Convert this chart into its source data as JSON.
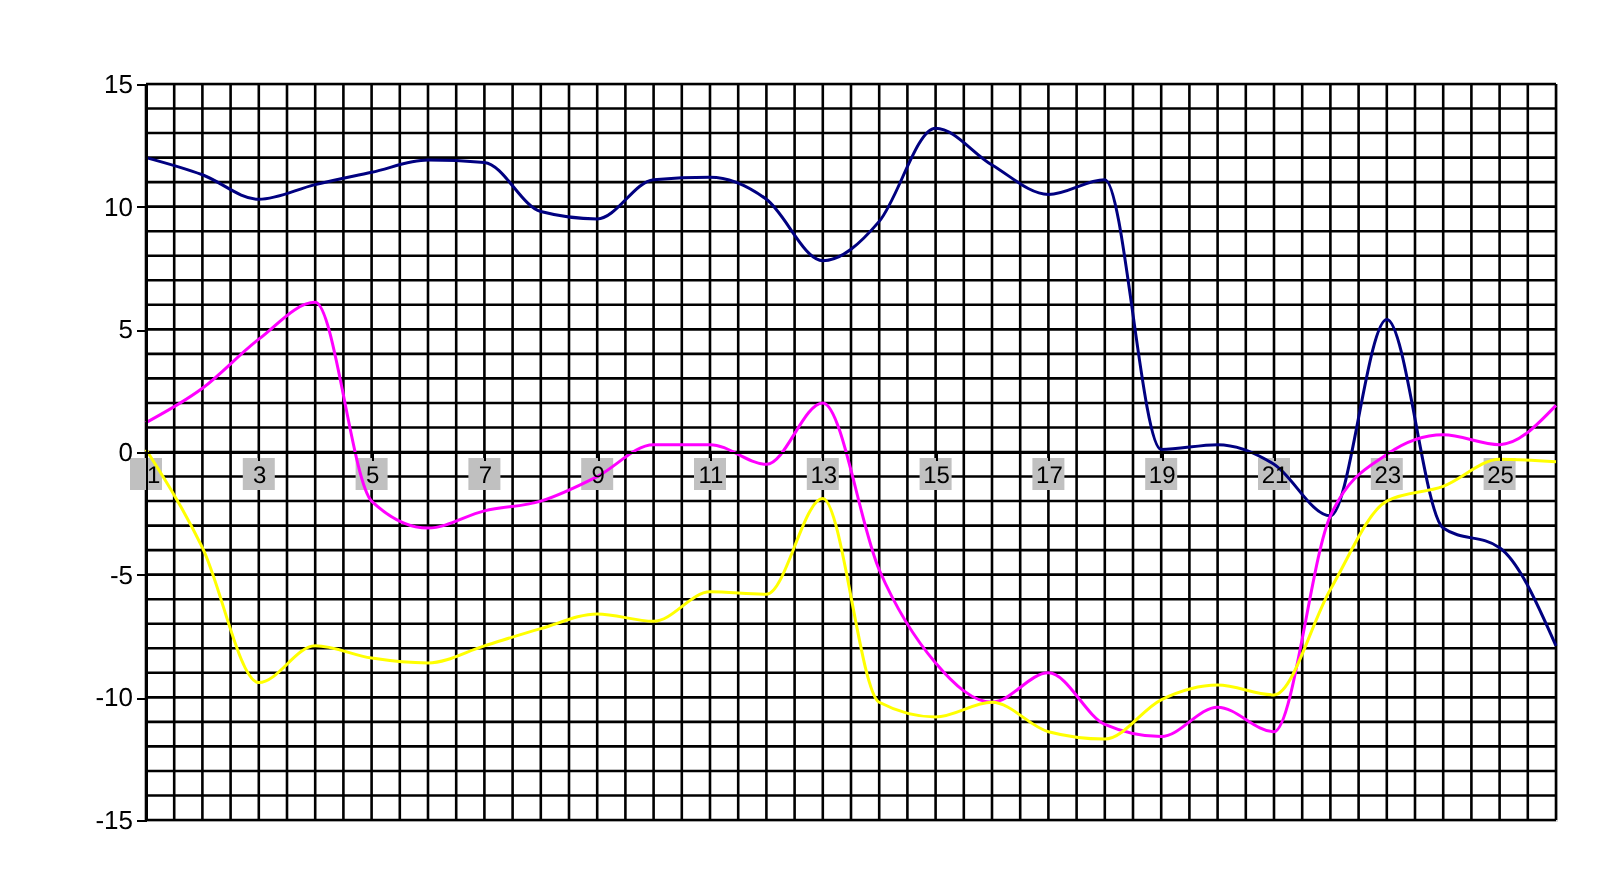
{
  "chart_data": {
    "type": "line",
    "x": [
      1,
      2,
      3,
      4,
      5,
      6,
      7,
      8,
      9,
      10,
      11,
      12,
      13,
      14,
      15,
      16,
      17,
      18,
      19,
      20,
      21,
      22,
      23,
      24,
      25,
      26
    ],
    "series": [
      {
        "color": "#000080",
        "values": [
          12.0,
          11.3,
          10.3,
          10.9,
          11.4,
          11.9,
          11.8,
          9.8,
          9.5,
          11.1,
          11.2,
          10.3,
          7.8,
          9.4,
          13.2,
          11.7,
          10.5,
          11.1,
          0.1,
          0.3,
          -0.5,
          -2.6,
          5.4,
          -3.1,
          -3.9,
          -7.9
        ]
      },
      {
        "color": "#ff00ff",
        "values": [
          1.2,
          2.6,
          4.6,
          6.1,
          -2.0,
          -3.1,
          -2.4,
          -2.0,
          -1.0,
          0.3,
          0.3,
          -0.5,
          2.0,
          -4.8,
          -8.6,
          -10.2,
          -9.0,
          -11.1,
          -11.6,
          -10.4,
          -11.4,
          -2.6,
          -0.1,
          0.7,
          0.3,
          1.9
        ]
      },
      {
        "color": "#ffff00",
        "values": [
          0.1,
          -3.9,
          -9.4,
          -7.9,
          -8.4,
          -8.6,
          -7.9,
          -7.2,
          -6.6,
          -6.9,
          -5.7,
          -5.8,
          -1.9,
          -10.2,
          -10.8,
          -10.2,
          -11.4,
          -11.7,
          -10.1,
          -9.5,
          -9.9,
          -5.6,
          -2.0,
          -1.4,
          -0.3,
          -0.4
        ]
      }
    ],
    "xlim": [
      1,
      26
    ],
    "xticks": [
      1,
      {
        "value": 1.5,
        "label": null
      },
      {
        "value": 2,
        "label": null
      },
      {
        "value": 2.5,
        "label": null
      },
      3,
      {
        "value": 3.5,
        "label": null
      },
      {
        "value": 4,
        "label": null
      },
      {
        "value": 4.5,
        "label": null
      },
      5,
      {
        "value": 5.5,
        "label": null
      },
      {
        "value": 6,
        "label": null
      },
      {
        "value": 6.5,
        "label": null
      },
      7,
      {
        "value": 7.5,
        "label": null
      },
      {
        "value": 8,
        "label": null
      },
      {
        "value": 8.5,
        "label": null
      },
      9,
      {
        "value": 9.5,
        "label": null
      },
      {
        "value": 10,
        "label": null
      },
      {
        "value": 10.5,
        "label": null
      },
      11,
      {
        "value": 11.5,
        "label": null
      },
      {
        "value": 12,
        "label": null
      },
      {
        "value": 12.5,
        "label": null
      },
      13,
      {
        "value": 13.5,
        "label": null
      },
      {
        "value": 14,
        "label": null
      },
      {
        "value": 14.5,
        "label": null
      },
      15,
      {
        "value": 15.5,
        "label": null
      },
      {
        "value": 16,
        "label": null
      },
      {
        "value": 16.5,
        "label": null
      },
      17,
      {
        "value": 17.5,
        "label": null
      },
      {
        "value": 18,
        "label": null
      },
      {
        "value": 18.5,
        "label": null
      },
      19,
      {
        "value": 19.5,
        "label": null
      },
      {
        "value": 20,
        "label": null
      },
      {
        "value": 20.5,
        "label": null
      },
      21,
      {
        "value": 21.5,
        "label": null
      },
      {
        "value": 22,
        "label": null
      },
      {
        "value": 22.5,
        "label": null
      },
      23,
      {
        "value": 23.5,
        "label": null
      },
      {
        "value": 24,
        "label": null
      },
      {
        "value": 24.5,
        "label": null
      },
      25,
      {
        "value": 25.5,
        "label": null
      },
      {
        "value": 26,
        "label": null
      }
    ],
    "ylim": [
      -15,
      15
    ],
    "yticks": [
      -15,
      {
        "value": -14,
        "label": null
      },
      {
        "value": -13,
        "label": null
      },
      {
        "value": -12,
        "label": null
      },
      {
        "value": -11,
        "label": null
      },
      -10,
      {
        "value": -9,
        "label": null
      },
      {
        "value": -8,
        "label": null
      },
      {
        "value": -7,
        "label": null
      },
      {
        "value": -6,
        "label": null
      },
      -5,
      {
        "value": -4,
        "label": null
      },
      {
        "value": -3,
        "label": null
      },
      {
        "value": -2,
        "label": null
      },
      {
        "value": -1,
        "label": null
      },
      0,
      {
        "value": 1,
        "label": null
      },
      {
        "value": 2,
        "label": null
      },
      {
        "value": 3,
        "label": null
      },
      {
        "value": 4,
        "label": null
      },
      5,
      {
        "value": 6,
        "label": null
      },
      {
        "value": 7,
        "label": null
      },
      {
        "value": 8,
        "label": null
      },
      {
        "value": 9,
        "label": null
      },
      10,
      {
        "value": 11,
        "label": null
      },
      {
        "value": 12,
        "label": null
      },
      {
        "value": 13,
        "label": null
      },
      {
        "value": 14,
        "label": null
      },
      15
    ],
    "grid": true,
    "marker": "none",
    "line_style": "solid"
  }
}
